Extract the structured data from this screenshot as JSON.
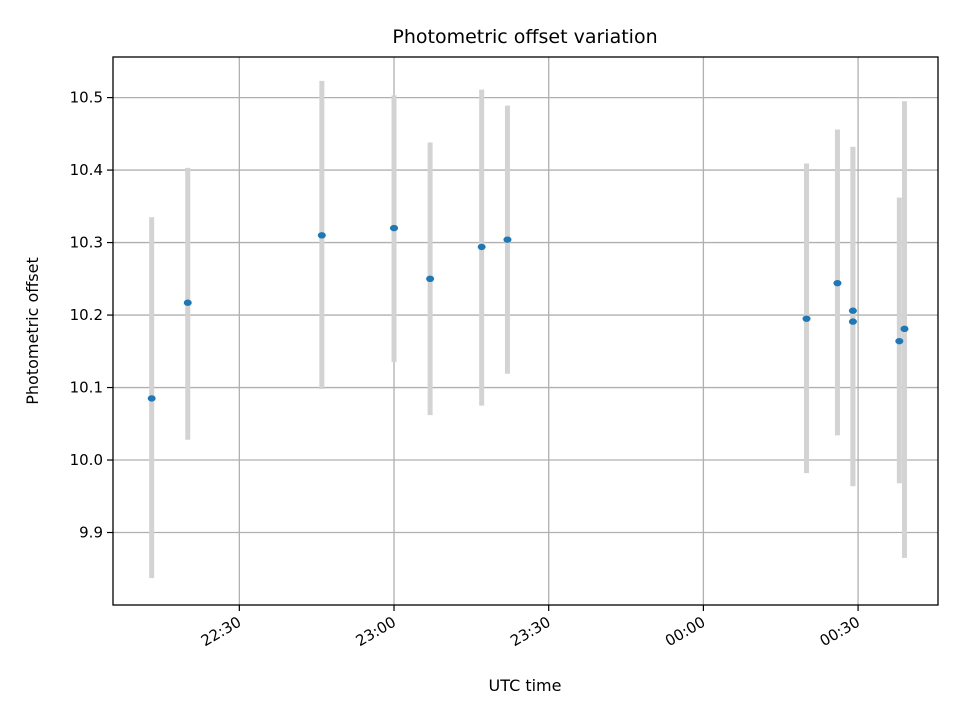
{
  "chart_data": {
    "type": "scatter",
    "title": "Photometric offset variation",
    "xlabel": "UTC time",
    "ylabel": "Photometric offset",
    "grid": true,
    "legend": "none",
    "colors": {
      "point": "#1f77b4",
      "errorbar": "#d3d3d3"
    },
    "xlim": [
      "22:05:30",
      "00:45:30"
    ],
    "ylim": [
      9.8,
      10.556
    ],
    "x_ticks": [
      "22:30",
      "23:00",
      "23:30",
      "00:00",
      "00:30"
    ],
    "y_ticks": [
      9.9,
      10.0,
      10.1,
      10.2,
      10.3,
      10.4,
      10.5
    ],
    "points": [
      {
        "x": "22:13",
        "y": 10.085,
        "ymin": 9.837,
        "ymax": 10.335
      },
      {
        "x": "22:20",
        "y": 10.217,
        "ymin": 10.028,
        "ymax": 10.403
      },
      {
        "x": "22:46",
        "y": 10.31,
        "ymin": 10.098,
        "ymax": 10.523
      },
      {
        "x": "23:00",
        "y": 10.32,
        "ymin": 10.135,
        "ymax": 10.503
      },
      {
        "x": "23:07",
        "y": 10.25,
        "ymin": 10.062,
        "ymax": 10.438
      },
      {
        "x": "23:17",
        "y": 10.294,
        "ymin": 10.075,
        "ymax": 10.511
      },
      {
        "x": "23:22",
        "y": 10.304,
        "ymin": 10.119,
        "ymax": 10.489
      },
      {
        "x": "00:20",
        "y": 10.195,
        "ymin": 9.982,
        "ymax": 10.409
      },
      {
        "x": "00:26",
        "y": 10.244,
        "ymin": 10.034,
        "ymax": 10.456
      },
      {
        "x": "00:29",
        "y": 10.191,
        "ymin": 9.964,
        "ymax": 10.432
      },
      {
        "x": "00:29",
        "y": 10.206,
        "ymin": 9.964,
        "ymax": 10.432
      },
      {
        "x": "00:38",
        "y": 10.164,
        "ymin": 9.968,
        "ymax": 10.362
      },
      {
        "x": "00:39",
        "y": 10.181,
        "ymin": 9.865,
        "ymax": 10.495
      }
    ]
  }
}
